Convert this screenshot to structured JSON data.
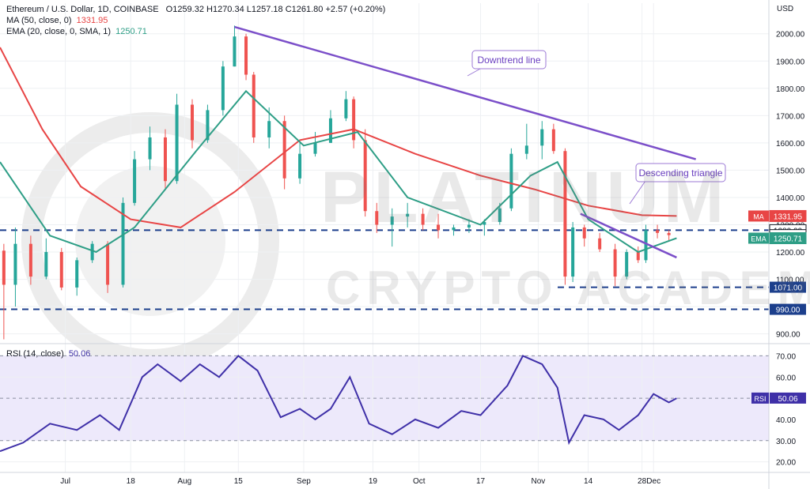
{
  "legend": {
    "title": "Ethereum / U.S. Dollar, 1D, COINBASE",
    "ohlc": "O1259.32  H1270.34  L1257.18  C1261.80  +2.57 (+0.20%)",
    "ma_label": "MA (50, close, 0)",
    "ma_value": "1331.95",
    "ema_label": "EMA (20, close, 0, SMA, 1)",
    "ema_value": "1250.71",
    "rsi_label": "RSI (14, close)",
    "rsi_value": "50.06"
  },
  "watermark": {
    "line1": "PLATINUM",
    "line2": "CRYPTO ACADEMY"
  },
  "colors": {
    "candle_up": "#26a69a",
    "candle_down": "#ef5350",
    "ma": "#e84545",
    "ema": "#2e9e86",
    "trendline": "#7b4fc9",
    "level": "#1c3f8c",
    "rsi": "#3f30a8",
    "rsi_band": "#ede9fb"
  },
  "chart_data": {
    "type": "candlestick",
    "title": "Ethereum / U.S. Dollar, 1D, COINBASE",
    "price_axis_label": "USD",
    "price_ticks": [
      900,
      1000,
      1100,
      1200,
      1300,
      1400,
      1500,
      1600,
      1700,
      1800,
      1900,
      2000
    ],
    "price_range": [
      870,
      2060
    ],
    "x_tick_labels": [
      {
        "date": "2022-07-01",
        "label": "Jul"
      },
      {
        "date": "2022-07-18",
        "label": "18"
      },
      {
        "date": "2022-08-01",
        "label": "Aug"
      },
      {
        "date": "2022-08-15",
        "label": "15"
      },
      {
        "date": "2022-09-01",
        "label": "Sep"
      },
      {
        "date": "2022-09-19",
        "label": "19"
      },
      {
        "date": "2022-10-01",
        "label": "Oct"
      },
      {
        "date": "2022-10-17",
        "label": "17"
      },
      {
        "date": "2022-11-01",
        "label": "Nov"
      },
      {
        "date": "2022-11-14",
        "label": "14"
      },
      {
        "date": "2022-11-28",
        "label": "28"
      },
      {
        "date": "2022-12-01",
        "label": "Dec"
      }
    ],
    "date_range": [
      "2022-06-14",
      "2022-12-31"
    ],
    "ohlc_points": [
      [
        "2022-06-15",
        1205,
        1230,
        880,
        1080
      ],
      [
        "2022-06-18",
        1080,
        1290,
        1000,
        1230
      ],
      [
        "2022-06-22",
        1230,
        1260,
        1080,
        1110
      ],
      [
        "2022-06-26",
        1110,
        1250,
        1100,
        1200
      ],
      [
        "2022-06-30",
        1200,
        1215,
        1060,
        1070
      ],
      [
        "2022-07-04",
        1070,
        1180,
        1040,
        1170
      ],
      [
        "2022-07-08",
        1170,
        1240,
        1160,
        1230
      ],
      [
        "2022-07-12",
        1230,
        1240,
        1050,
        1080
      ],
      [
        "2022-07-16",
        1080,
        1400,
        1070,
        1380
      ],
      [
        "2022-07-19",
        1380,
        1570,
        1370,
        1540
      ],
      [
        "2022-07-23",
        1540,
        1660,
        1500,
        1620
      ],
      [
        "2022-07-27",
        1620,
        1650,
        1430,
        1460
      ],
      [
        "2022-07-30",
        1460,
        1780,
        1450,
        1740
      ],
      [
        "2022-08-03",
        1740,
        1760,
        1580,
        1610
      ],
      [
        "2022-08-07",
        1610,
        1740,
        1600,
        1720
      ],
      [
        "2022-08-11",
        1720,
        1900,
        1700,
        1880
      ],
      [
        "2022-08-14",
        1880,
        2030,
        1880,
        1990
      ],
      [
        "2022-08-17",
        1990,
        2000,
        1830,
        1850
      ],
      [
        "2022-08-19",
        1850,
        1860,
        1600,
        1620
      ],
      [
        "2022-08-23",
        1620,
        1730,
        1580,
        1680
      ],
      [
        "2022-08-27",
        1680,
        1700,
        1430,
        1470
      ],
      [
        "2022-08-31",
        1470,
        1600,
        1450,
        1560
      ],
      [
        "2022-09-04",
        1560,
        1640,
        1550,
        1600
      ],
      [
        "2022-09-08",
        1600,
        1720,
        1600,
        1690
      ],
      [
        "2022-09-12",
        1690,
        1790,
        1680,
        1760
      ],
      [
        "2022-09-14",
        1760,
        1770,
        1580,
        1610
      ],
      [
        "2022-09-17",
        1610,
        1650,
        1330,
        1350
      ],
      [
        "2022-09-20",
        1350,
        1380,
        1270,
        1300
      ],
      [
        "2022-09-24",
        1300,
        1360,
        1220,
        1330
      ],
      [
        "2022-09-28",
        1330,
        1380,
        1290,
        1340
      ],
      [
        "2022-10-02",
        1340,
        1360,
        1280,
        1300
      ],
      [
        "2022-10-06",
        1300,
        1340,
        1250,
        1280
      ],
      [
        "2022-10-10",
        1280,
        1300,
        1260,
        1290
      ],
      [
        "2022-10-14",
        1290,
        1320,
        1270,
        1300
      ],
      [
        "2022-10-18",
        1300,
        1320,
        1260,
        1310
      ],
      [
        "2022-10-22",
        1310,
        1380,
        1300,
        1360
      ],
      [
        "2022-10-25",
        1360,
        1580,
        1350,
        1560
      ],
      [
        "2022-10-29",
        1560,
        1670,
        1540,
        1590
      ],
      [
        "2022-11-02",
        1590,
        1680,
        1540,
        1650
      ],
      [
        "2022-11-05",
        1650,
        1670,
        1560,
        1570
      ],
      [
        "2022-11-08",
        1570,
        1580,
        1080,
        1110
      ],
      [
        "2022-11-10",
        1110,
        1310,
        1090,
        1290
      ],
      [
        "2022-11-13",
        1290,
        1300,
        1220,
        1250
      ],
      [
        "2022-11-17",
        1250,
        1270,
        1200,
        1210
      ],
      [
        "2022-11-21",
        1210,
        1230,
        1075,
        1110
      ],
      [
        "2022-11-24",
        1110,
        1210,
        1100,
        1200
      ],
      [
        "2022-11-27",
        1200,
        1220,
        1160,
        1170
      ],
      [
        "2022-11-29",
        1170,
        1300,
        1160,
        1280
      ],
      [
        "2022-12-02",
        1280,
        1300,
        1250,
        1270
      ],
      [
        "2022-12-05",
        1270,
        1280,
        1240,
        1262
      ]
    ],
    "series": [
      {
        "name": "MA (50, close, 0)",
        "points": [
          [
            "2022-06-14",
            1950
          ],
          [
            "2022-06-25",
            1650
          ],
          [
            "2022-07-05",
            1440
          ],
          [
            "2022-07-18",
            1320
          ],
          [
            "2022-07-31",
            1290
          ],
          [
            "2022-08-14",
            1420
          ],
          [
            "2022-08-31",
            1610
          ],
          [
            "2022-09-14",
            1650
          ],
          [
            "2022-09-30",
            1560
          ],
          [
            "2022-10-17",
            1480
          ],
          [
            "2022-10-31",
            1430
          ],
          [
            "2022-11-14",
            1370
          ],
          [
            "2022-11-28",
            1335
          ],
          [
            "2022-12-07",
            1332
          ]
        ]
      },
      {
        "name": "EMA (20, close, 0, SMA, 1)",
        "points": [
          [
            "2022-06-14",
            1530
          ],
          [
            "2022-06-27",
            1260
          ],
          [
            "2022-07-09",
            1200
          ],
          [
            "2022-07-19",
            1290
          ],
          [
            "2022-08-04",
            1570
          ],
          [
            "2022-08-17",
            1790
          ],
          [
            "2022-09-01",
            1590
          ],
          [
            "2022-09-15",
            1640
          ],
          [
            "2022-09-28",
            1400
          ],
          [
            "2022-10-17",
            1300
          ],
          [
            "2022-10-30",
            1480
          ],
          [
            "2022-11-06",
            1530
          ],
          [
            "2022-11-14",
            1320
          ],
          [
            "2022-11-27",
            1200
          ],
          [
            "2022-12-07",
            1251
          ]
        ]
      },
      {
        "name": "RSI (14, close)",
        "points": [
          [
            "2022-06-14",
            25
          ],
          [
            "2022-06-20",
            29
          ],
          [
            "2022-06-27",
            38
          ],
          [
            "2022-07-04",
            35
          ],
          [
            "2022-07-10",
            42
          ],
          [
            "2022-07-15",
            35
          ],
          [
            "2022-07-21",
            60
          ],
          [
            "2022-07-25",
            66
          ],
          [
            "2022-07-31",
            58
          ],
          [
            "2022-08-05",
            66
          ],
          [
            "2022-08-10",
            60
          ],
          [
            "2022-08-15",
            70
          ],
          [
            "2022-08-20",
            63
          ],
          [
            "2022-08-26",
            41
          ],
          [
            "2022-08-31",
            45
          ],
          [
            "2022-09-04",
            40
          ],
          [
            "2022-09-08",
            45
          ],
          [
            "2022-09-13",
            60
          ],
          [
            "2022-09-18",
            38
          ],
          [
            "2022-09-24",
            33
          ],
          [
            "2022-09-30",
            40
          ],
          [
            "2022-10-06",
            36
          ],
          [
            "2022-10-12",
            44
          ],
          [
            "2022-10-17",
            42
          ],
          [
            "2022-10-24",
            56
          ],
          [
            "2022-10-28",
            70
          ],
          [
            "2022-11-02",
            66
          ],
          [
            "2022-11-06",
            55
          ],
          [
            "2022-11-09",
            29
          ],
          [
            "2022-11-13",
            42
          ],
          [
            "2022-11-18",
            40
          ],
          [
            "2022-11-22",
            35
          ],
          [
            "2022-11-27",
            42
          ],
          [
            "2022-12-01",
            52
          ],
          [
            "2022-12-05",
            48
          ],
          [
            "2022-12-07",
            50
          ]
        ]
      }
    ],
    "trendlines": [
      {
        "name": "Downtrend line",
        "points": [
          [
            "2022-08-14",
            2025
          ],
          [
            "2022-12-12",
            1540
          ]
        ]
      },
      {
        "name": "Descending triangle",
        "points": [
          [
            "2022-11-12",
            1340
          ],
          [
            "2022-12-07",
            1180
          ]
        ]
      }
    ],
    "levels": [
      {
        "label": "1280.00",
        "value": 1280
      },
      {
        "label": "1071.00",
        "value": 1071
      },
      {
        "label": "990.00",
        "value": 990
      }
    ],
    "price_tags": [
      {
        "label": "MA",
        "value": "1331.95",
        "price": 1331.95,
        "color": "#e84545"
      },
      {
        "label": "",
        "value": "1280.00",
        "price": 1280,
        "color": "#ffffff"
      },
      {
        "label": "",
        "value": "1261.80",
        "price": 1261.8,
        "color": "#ffffff"
      },
      {
        "label": "EMA",
        "value": "1250.71",
        "price": 1250.71,
        "color": "#2e9e86"
      }
    ],
    "annotations": [
      {
        "text": "Downtrend line"
      },
      {
        "text": "Descending triangle"
      }
    ],
    "rsi": {
      "ticks": [
        20,
        30,
        40,
        50,
        60,
        70
      ],
      "tick_labels": [
        "20.00",
        "30.00",
        "40.00",
        "50.00",
        "60.00",
        "70.00"
      ],
      "range": [
        15,
        75
      ],
      "upper": 70,
      "lower": 30,
      "current": "50.06",
      "tag": "RSI"
    }
  }
}
